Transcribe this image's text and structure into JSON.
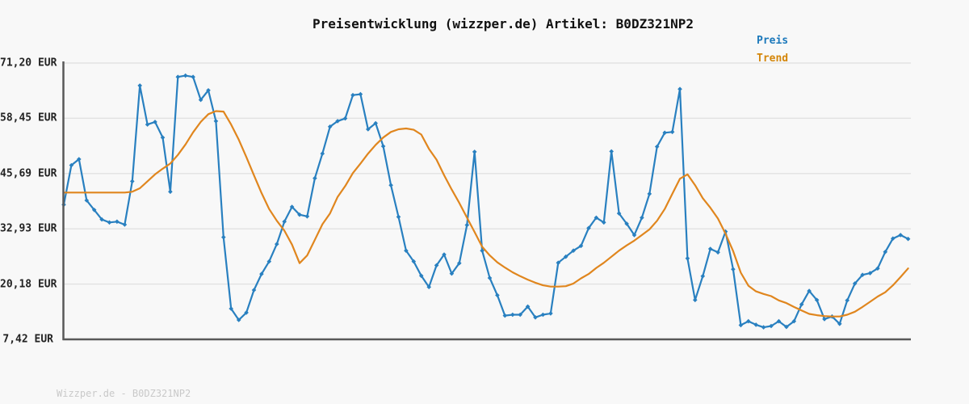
{
  "footer": "Wizzper.de - B0DZ321NP2",
  "legend": [
    {
      "label": "Preis",
      "color": "#1b78bb"
    },
    {
      "label": "Trend",
      "color": "#d4860a"
    }
  ],
  "colors": {
    "background": "#f8f8f8",
    "grid": "#e2e2e2",
    "axis": "#595959",
    "price_line": "#2980c0",
    "trend_line": "#e0861e",
    "title_text": "#111111",
    "tick_text": "#222222",
    "footer_text": "#c9c9c9"
  },
  "chart_data": {
    "type": "line",
    "title": "Preisentwicklung (wizzper.de) Artikel: B0DZ321NP2",
    "xlabel": "",
    "ylabel": "",
    "ylim": [
      7.42,
      71.2
    ],
    "grid": true,
    "legend_position": "top-right",
    "y_ticks": [
      {
        "label": "71,20 EUR",
        "value": 71.2
      },
      {
        "label": "58,45 EUR",
        "value": 58.45
      },
      {
        "label": "45,69 EUR",
        "value": 45.69
      },
      {
        "label": "32,93 EUR",
        "value": 32.93
      },
      {
        "label": "20,18 EUR",
        "value": 20.18
      },
      {
        "label": "7,42 EUR",
        "value": 7.42
      }
    ],
    "series": [
      {
        "name": "Preis",
        "color": "#2980c0",
        "marker": "diamond",
        "values": [
          38.5,
          47.6,
          49.0,
          39.5,
          37.3,
          35.1,
          34.4,
          34.6,
          33.9,
          43.9,
          66.0,
          57.0,
          57.6,
          54.0,
          41.5,
          68.0,
          68.3,
          68.0,
          62.7,
          64.9,
          57.8,
          31.0,
          14.5,
          11.9,
          13.6,
          18.8,
          22.5,
          25.4,
          29.4,
          34.6,
          38.0,
          36.2,
          35.8,
          44.6,
          50.3,
          56.5,
          57.8,
          58.4,
          63.8,
          64.0,
          55.9,
          57.3,
          52.0,
          43.0,
          35.7,
          27.9,
          25.4,
          22.1,
          19.5,
          24.5,
          27.0,
          22.6,
          25.0,
          33.8,
          50.7,
          27.9,
          21.6,
          17.6,
          12.9,
          13.1,
          13.1,
          15.0,
          12.5,
          13.1,
          13.4,
          25.1,
          26.5,
          27.9,
          29.0,
          33.1,
          35.5,
          34.4,
          50.8,
          36.5,
          34.1,
          31.5,
          35.5,
          41.0,
          51.9,
          55.1,
          55.3,
          65.2,
          26.1,
          16.5,
          22.0,
          28.3,
          27.5,
          32.3,
          23.6,
          10.7,
          11.6,
          10.8,
          10.2,
          10.5,
          11.6,
          10.3,
          11.6,
          15.5,
          18.6,
          16.5,
          12.1,
          12.7,
          11.0,
          16.4,
          20.3,
          22.3,
          22.7,
          23.8,
          27.6,
          30.7,
          31.5,
          30.6
        ]
      },
      {
        "name": "Trend",
        "color": "#e0861e",
        "marker": "none",
        "values": [
          41.3,
          41.3,
          41.3,
          41.3,
          41.3,
          41.3,
          41.3,
          41.3,
          41.3,
          41.5,
          42.3,
          43.9,
          45.5,
          46.8,
          48.0,
          50.0,
          52.4,
          55.2,
          57.6,
          59.4,
          60.1,
          60.0,
          57.0,
          53.5,
          49.5,
          45.3,
          41.2,
          37.5,
          34.8,
          32.5,
          29.3,
          25.0,
          26.8,
          30.4,
          34.0,
          36.5,
          40.3,
          42.8,
          45.8,
          48.0,
          50.3,
          52.3,
          54.0,
          55.3,
          55.9,
          56.1,
          55.8,
          54.7,
          51.4,
          48.9,
          45.3,
          42.0,
          38.9,
          35.5,
          32.2,
          28.8,
          26.8,
          25.2,
          24.0,
          22.9,
          22.0,
          21.2,
          20.5,
          19.9,
          19.6,
          19.6,
          19.7,
          20.3,
          21.5,
          22.5,
          23.9,
          25.1,
          26.5,
          27.9,
          29.1,
          30.2,
          31.5,
          32.8,
          34.8,
          37.5,
          41.0,
          44.5,
          45.5,
          43.0,
          40.0,
          37.8,
          35.3,
          31.8,
          27.8,
          22.8,
          19.8,
          18.5,
          17.9,
          17.4,
          16.4,
          15.8,
          14.9,
          14.1,
          13.3,
          13.0,
          12.8,
          12.7,
          12.7,
          13.1,
          13.8,
          14.9,
          16.1,
          17.3,
          18.3,
          19.9,
          21.8,
          23.8
        ]
      }
    ]
  }
}
